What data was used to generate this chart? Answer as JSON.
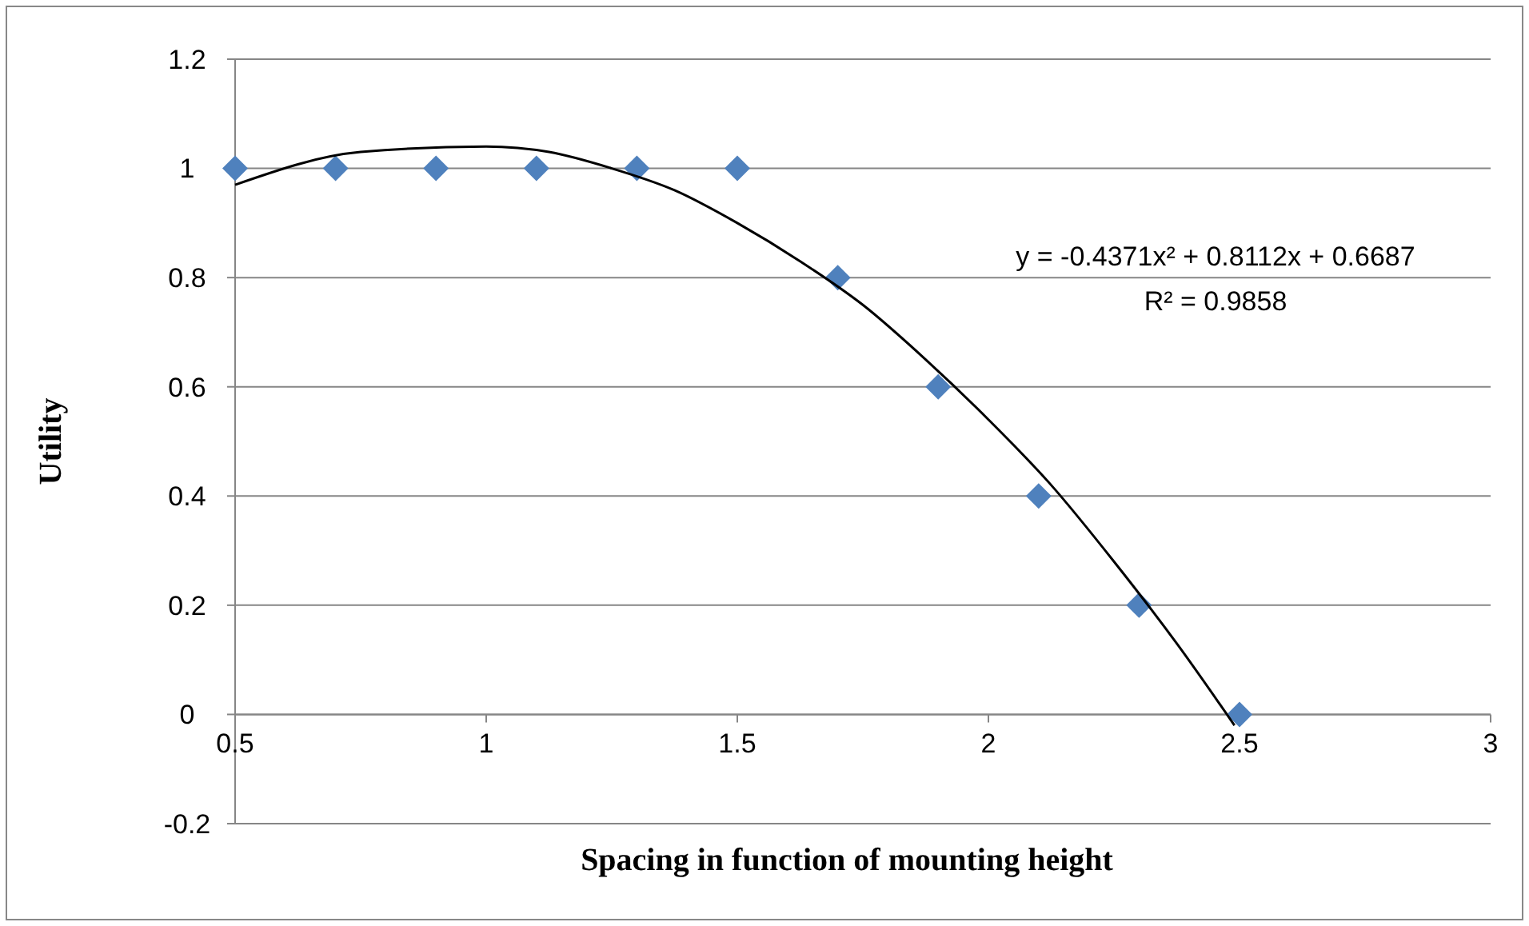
{
  "chart_data": {
    "type": "scatter",
    "xlabel": "Spacing in function of mounting height",
    "ylabel": "Utility",
    "xlim": [
      0.5,
      3
    ],
    "xticks": [
      0.5,
      1,
      1.5,
      2,
      2.5,
      3
    ],
    "ylim": [
      -0.2,
      1.2
    ],
    "yticks": [
      -0.2,
      0,
      0.2,
      0.4,
      0.6,
      0.8,
      1,
      1.2
    ],
    "grid": "y",
    "annotations": [
      "y = -0.4371x² + 0.8112x + 0.6687",
      "R² = 0.9858"
    ],
    "series": [
      {
        "marker": "diamond",
        "color": "#4f81bd",
        "x": [
          0.5,
          0.7,
          0.9,
          1.1,
          1.3,
          1.5,
          1.7,
          1.9,
          2.1,
          2.3,
          2.5
        ],
        "values": [
          1,
          1,
          1,
          1,
          1,
          1,
          0.8,
          0.6,
          0.4,
          0.2,
          0
        ]
      },
      {
        "type": "line",
        "marker": "none",
        "line_style": "solid",
        "color": "#000000",
        "x": [
          0.5,
          0.75,
          1,
          1.125,
          1.25,
          1.375,
          1.5,
          1.625,
          1.75,
          1.875,
          2,
          2.125,
          2.25,
          2.375,
          2.49
        ],
        "values": [
          0.97,
          1.03,
          1.04,
          1.03,
          1.0,
          0.96,
          0.9,
          0.83,
          0.75,
          0.65,
          0.54,
          0.42,
          0.28,
          0.13,
          -0.02
        ]
      }
    ]
  }
}
